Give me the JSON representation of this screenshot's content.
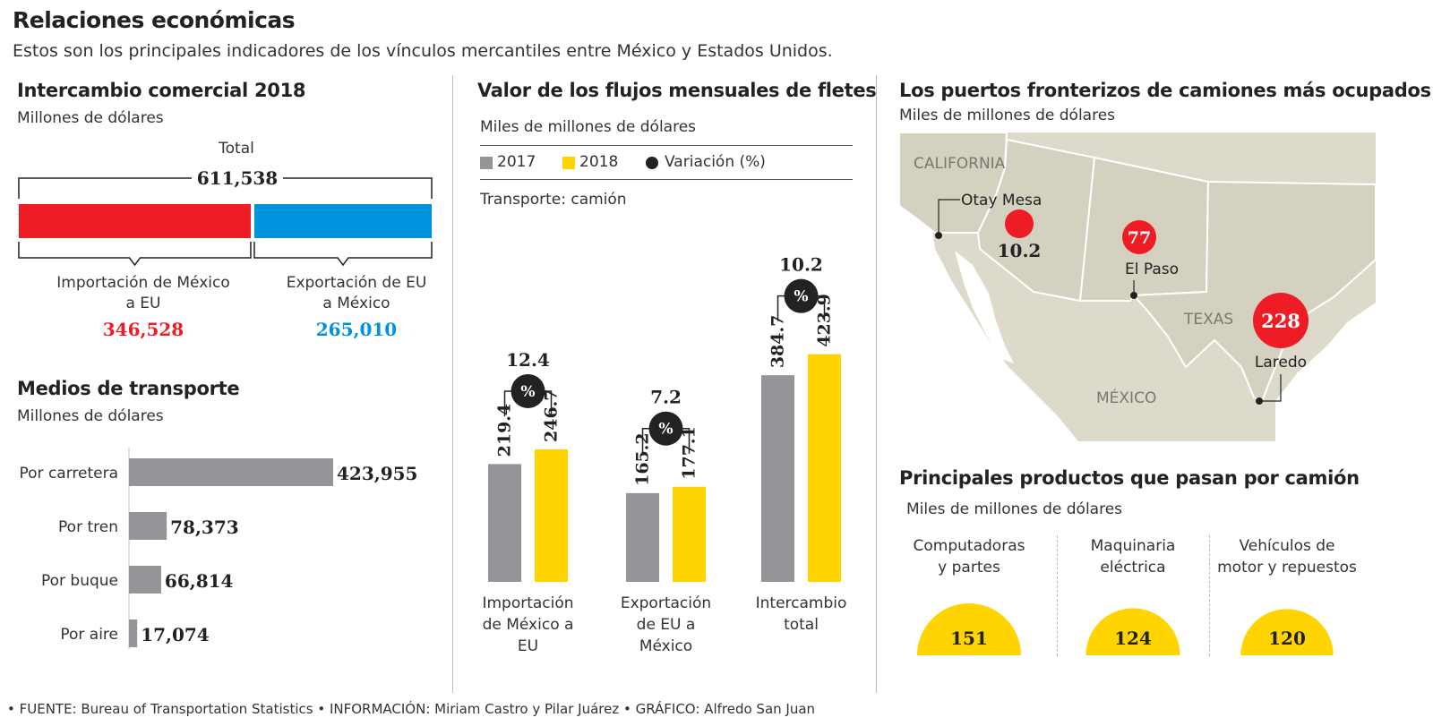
{
  "title": "Relaciones económicas",
  "subtitle": "Estos son los principales indicadores de los vínculos mercantiles entre México y Estados Unidos.",
  "colors": {
    "red": "#ee1c25",
    "blue": "#0093dd",
    "gray": "#949599",
    "yellow": "#ffd400",
    "map_land": "#dedacb",
    "map_state": "#d4d0bf"
  },
  "intercambio": {
    "title": "Intercambio comercial 2018",
    "unit": "Millones de dólares",
    "total_label": "Total",
    "total": "611,538",
    "import_label_1": "Importación de México",
    "import_label_2": "a EU",
    "import_value": "346,528",
    "export_label_1": "Exportación de EU",
    "export_label_2": "a México",
    "export_value": "265,010"
  },
  "medios": {
    "title": "Medios de transporte",
    "unit": "Millones de dólares"
  },
  "fletes": {
    "title": "Valor de los flujos mensuales de fletes",
    "unit": "Miles de millones de dólares",
    "legend_2017": "2017",
    "legend_2018": "2018",
    "legend_var": "Variación (%)",
    "transporte": "Transporte: camión",
    "pct_symbol": "%"
  },
  "puertos": {
    "title": "Los puertos fronterizos de camiones más ocupados",
    "unit": "Miles de millones de dólares",
    "labels": {
      "california": "CALIFORNIA",
      "texas": "TEXAS",
      "mexico": "MÉXICO"
    },
    "ports": [
      {
        "name": "Otay Mesa",
        "value": "10.2"
      },
      {
        "name": "El Paso",
        "value": "77"
      },
      {
        "name": "Laredo",
        "value": "228"
      }
    ]
  },
  "productos": {
    "title": "Principales productos que pasan por camión",
    "unit": "Miles de millones de dólares",
    "items": [
      {
        "label_1": "Computadoras",
        "label_2": "y partes",
        "value": "151"
      },
      {
        "label_1": "Maquinaria",
        "label_2": "eléctrica",
        "value": "124"
      },
      {
        "label_1": "Vehículos de",
        "label_2": "motor y repuestos",
        "value": "120"
      }
    ]
  },
  "footer": "• FUENTE: Bureau of Transportation Statistics • INFORMACIÓN: Miriam Castro y Pilar Juárez • GRÁFICO: Alfredo San Juan",
  "chart_data": [
    {
      "type": "bar",
      "title": "Intercambio comercial 2018",
      "ylabel": "Millones de dólares",
      "categories": [
        "Importación de México a EU",
        "Exportación de EU a México"
      ],
      "values": [
        346528,
        265010
      ],
      "total": 611538
    },
    {
      "type": "bar",
      "title": "Medios de transporte",
      "ylabel": "Millones de dólares",
      "categories": [
        "Por carretera",
        "Por tren",
        "Por buque",
        "Por aire"
      ],
      "values": [
        423955,
        78373,
        66814,
        17074
      ],
      "value_labels": [
        "423,955",
        "78,373",
        "66,814",
        "17,074"
      ]
    },
    {
      "type": "bar",
      "title": "Valor de los flujos mensuales de fletes",
      "ylabel": "Miles de millones de dólares",
      "categories": [
        {
          "label_1": "Importación",
          "label_2": "de México a",
          "label_3": "EU"
        },
        {
          "label_1": "Exportación",
          "label_2": "de EU a",
          "label_3": "México"
        },
        {
          "label_1": "Intercambio",
          "label_2": "total",
          "label_3": ""
        }
      ],
      "series": [
        {
          "name": "2017",
          "values": [
            219.4,
            165.2,
            384.7
          ],
          "labels": [
            "219.4",
            "165.2",
            "384.7"
          ]
        },
        {
          "name": "2018",
          "values": [
            246.7,
            177.1,
            423.9
          ],
          "labels": [
            "246.7",
            "177.1",
            "423.9"
          ]
        }
      ],
      "variation": [
        "12.4",
        "7.2",
        "10.2"
      ]
    },
    {
      "type": "bar",
      "title": "Principales productos que pasan por camión",
      "ylabel": "Miles de millones de dólares",
      "categories": [
        "Computadoras y partes",
        "Maquinaria eléctrica",
        "Vehículos de motor y repuestos"
      ],
      "values": [
        151,
        124,
        120
      ]
    }
  ]
}
